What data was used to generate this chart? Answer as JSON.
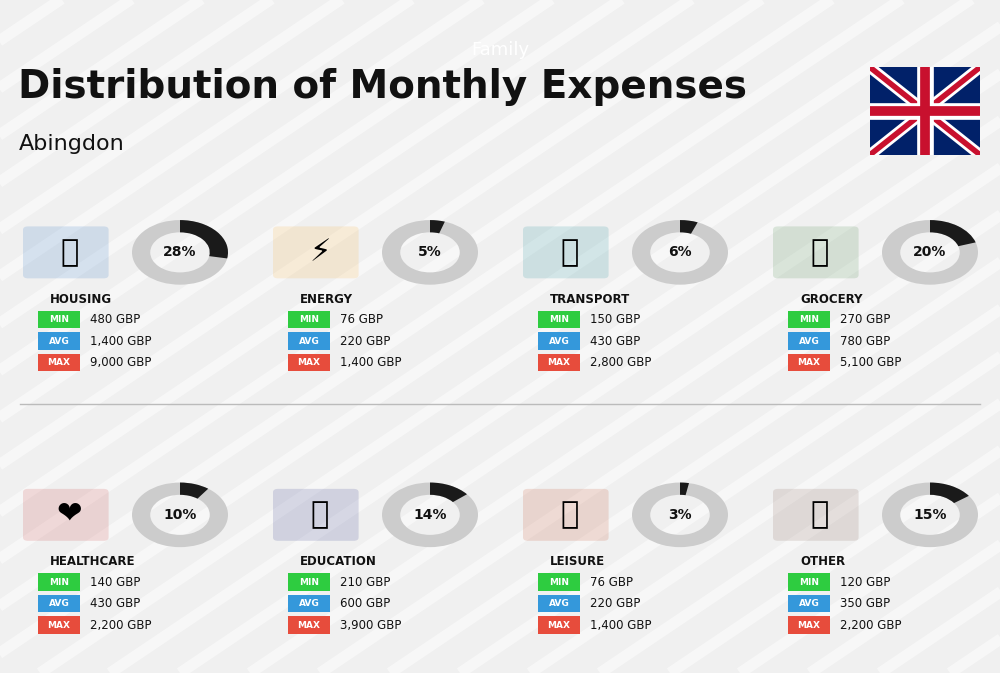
{
  "title": "Distribution of Monthly Expenses",
  "subtitle": "Abingdon",
  "category_label": "Family",
  "bg_color": "#f0f0f0",
  "categories": [
    {
      "name": "HOUSING",
      "percent": 28,
      "min_val": "480 GBP",
      "avg_val": "1,400 GBP",
      "max_val": "9,000 GBP",
      "icon_color": "#1565C0",
      "row": 0,
      "col": 0
    },
    {
      "name": "ENERGY",
      "percent": 5,
      "min_val": "76 GBP",
      "avg_val": "220 GBP",
      "max_val": "1,400 GBP",
      "icon_color": "#F9A825",
      "row": 0,
      "col": 1
    },
    {
      "name": "TRANSPORT",
      "percent": 6,
      "min_val": "150 GBP",
      "avg_val": "430 GBP",
      "max_val": "2,800 GBP",
      "icon_color": "#00838F",
      "row": 0,
      "col": 2
    },
    {
      "name": "GROCERY",
      "percent": 20,
      "min_val": "270 GBP",
      "avg_val": "780 GBP",
      "max_val": "5,100 GBP",
      "icon_color": "#2E7D32",
      "row": 0,
      "col": 3
    },
    {
      "name": "HEALTHCARE",
      "percent": 10,
      "min_val": "140 GBP",
      "avg_val": "430 GBP",
      "max_val": "2,200 GBP",
      "icon_color": "#C62828",
      "row": 1,
      "col": 0
    },
    {
      "name": "EDUCATION",
      "percent": 14,
      "min_val": "210 GBP",
      "avg_val": "600 GBP",
      "max_val": "3,900 GBP",
      "icon_color": "#1A237E",
      "row": 1,
      "col": 1
    },
    {
      "name": "LEISURE",
      "percent": 3,
      "min_val": "76 GBP",
      "avg_val": "220 GBP",
      "max_val": "1,400 GBP",
      "icon_color": "#BF360C",
      "row": 1,
      "col": 2
    },
    {
      "name": "OTHER",
      "percent": 15,
      "min_val": "120 GBP",
      "avg_val": "350 GBP",
      "max_val": "2,200 GBP",
      "icon_color": "#795548",
      "row": 1,
      "col": 3
    }
  ],
  "min_color": "#2ECC40",
  "avg_color": "#3498DB",
  "max_color": "#E74C3C",
  "label_color": "#ffffff",
  "text_color": "#111111",
  "donut_bg": "#cccccc",
  "donut_fill": "#222222"
}
